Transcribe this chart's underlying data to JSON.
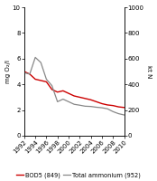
{
  "years": [
    1992,
    1993,
    1994,
    1995,
    1996,
    1997,
    1998,
    1999,
    2000,
    2001,
    2002,
    2003,
    2004,
    2005,
    2006,
    2007,
    2008,
    2009,
    2010
  ],
  "bod5": [
    5.0,
    4.8,
    4.4,
    4.3,
    4.2,
    3.6,
    3.4,
    3.5,
    3.3,
    3.1,
    3.0,
    2.9,
    2.8,
    2.65,
    2.5,
    2.4,
    2.35,
    2.25,
    2.2
  ],
  "ammonium": [
    490,
    480,
    610,
    570,
    440,
    390,
    265,
    285,
    265,
    245,
    238,
    230,
    228,
    222,
    218,
    210,
    188,
    172,
    162
  ],
  "bod5_color": "#cc0000",
  "ammonium_color": "#888888",
  "ylim_left": [
    0,
    10
  ],
  "ylim_right": [
    0,
    1000
  ],
  "yticks_left": [
    0,
    2,
    4,
    6,
    8,
    10
  ],
  "yticks_right": [
    0,
    200,
    400,
    600,
    800,
    1000
  ],
  "ylabel_left": "mg O₂/l",
  "ylabel_right": "kt N",
  "legend_bod5": "BOD5 (849)",
  "legend_ammonium": "Total ammonium (952)",
  "background_color": "#ffffff",
  "font_size": 5.0,
  "legend_fontsize": 4.8
}
